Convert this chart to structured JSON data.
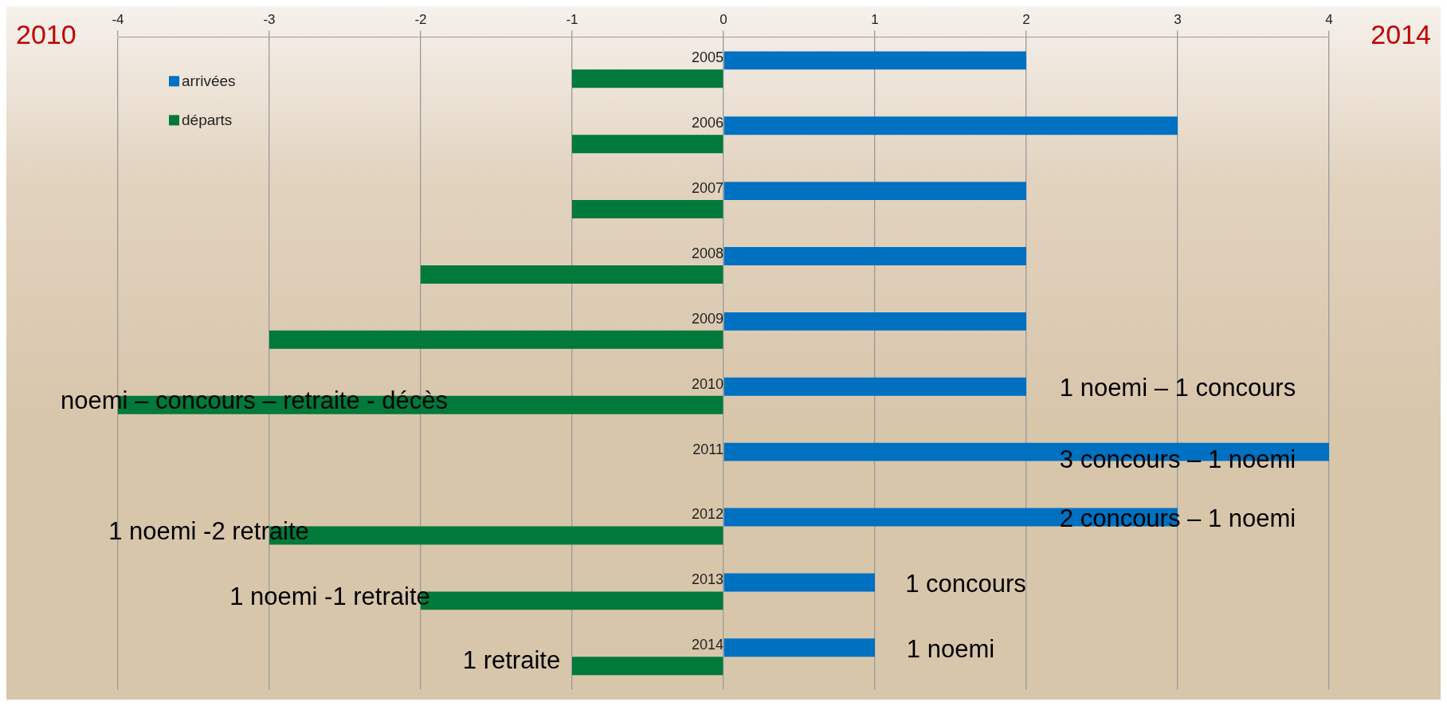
{
  "chart_data": {
    "type": "bar",
    "orientation": "horizontal",
    "categories": [
      "2005",
      "2006",
      "2007",
      "2008",
      "2009",
      "2010",
      "2011",
      "2012",
      "2013",
      "2014"
    ],
    "series": [
      {
        "name": "arrivées",
        "color": "#0070c0",
        "values": [
          2,
          3,
          2,
          2,
          2,
          2,
          4,
          3,
          1,
          1
        ]
      },
      {
        "name": "départs",
        "color": "#00793a",
        "values": [
          -1,
          -1,
          -1,
          -2,
          -3,
          -4,
          null,
          -3,
          -2,
          -1
        ]
      }
    ],
    "xlim": [
      -4,
      4
    ],
    "xticks": [
      -4,
      -3,
      -2,
      -1,
      0,
      1,
      2,
      3,
      4
    ],
    "grid": "x",
    "legend": "top left",
    "annotations": [
      "2010",
      "2014",
      "noemi – concours – retraite - décès",
      "1 noemi – 1 concours",
      "3 concours – 1 noemi",
      "2 concours – 1 noemi",
      "1 noemi -2 retraite",
      "1 noemi -1 retraite",
      "1 concours",
      "1 noemi",
      "1 retraite"
    ]
  }
}
